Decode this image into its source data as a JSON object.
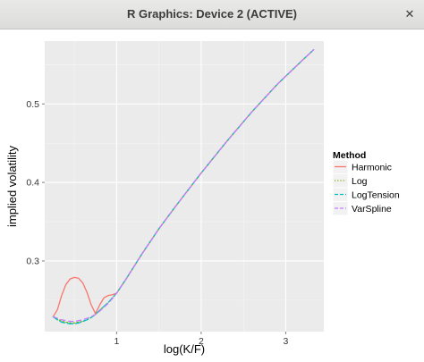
{
  "window": {
    "title": "R Graphics: Device 2 (ACTIVE)",
    "close_icon": "close-icon"
  },
  "chart_data": {
    "type": "line",
    "xlabel": "log(K/F)",
    "ylabel": "implied volatility",
    "xlim": [
      0.15,
      3.45
    ],
    "ylim": [
      0.21,
      0.58
    ],
    "xticks": [
      1,
      2,
      3
    ],
    "xtick_labels": [
      "1",
      "2",
      "3"
    ],
    "yticks": [
      0.3,
      0.4,
      0.5
    ],
    "ytick_labels": [
      "0.3",
      "0.4",
      "0.5"
    ],
    "grid": true,
    "panel_background": "#ebebeb",
    "legend": {
      "title": "Method",
      "position": "right"
    },
    "series": [
      {
        "name": "Harmonic",
        "color": "#f8766d",
        "dash": "solid",
        "x": [
          0.25,
          0.3,
          0.35,
          0.4,
          0.45,
          0.5,
          0.55,
          0.6,
          0.65,
          0.7,
          0.75,
          0.8,
          0.85,
          0.9,
          0.95,
          1.0,
          1.1,
          1.2,
          1.3,
          1.5,
          1.7,
          2.0,
          2.3,
          2.6,
          2.9,
          3.2,
          3.33
        ],
        "y": [
          0.229,
          0.238,
          0.256,
          0.27,
          0.277,
          0.279,
          0.278,
          0.272,
          0.26,
          0.244,
          0.233,
          0.244,
          0.253,
          0.256,
          0.257,
          0.259,
          0.275,
          0.292,
          0.309,
          0.341,
          0.37,
          0.412,
          0.452,
          0.49,
          0.525,
          0.556,
          0.569
        ]
      },
      {
        "name": "Log",
        "color": "#7cae00",
        "dash": "1.5,2.5",
        "x": [
          0.25,
          0.3,
          0.35,
          0.4,
          0.45,
          0.5,
          0.55,
          0.6,
          0.65,
          0.7,
          0.75,
          0.8,
          0.85,
          0.9,
          0.95,
          1.0,
          1.1,
          1.2,
          1.3,
          1.5,
          1.7,
          2.0,
          2.3,
          2.6,
          2.9,
          3.2,
          3.33
        ],
        "y": [
          0.229,
          0.226,
          0.223,
          0.222,
          0.221,
          0.221,
          0.222,
          0.223,
          0.225,
          0.228,
          0.232,
          0.237,
          0.242,
          0.247,
          0.253,
          0.259,
          0.275,
          0.292,
          0.309,
          0.341,
          0.37,
          0.412,
          0.452,
          0.49,
          0.525,
          0.556,
          0.569
        ]
      },
      {
        "name": "LogTension",
        "color": "#00bfc4",
        "dash": "6,3",
        "x": [
          0.25,
          0.3,
          0.35,
          0.4,
          0.45,
          0.5,
          0.55,
          0.6,
          0.65,
          0.7,
          0.75,
          0.8,
          0.85,
          0.9,
          0.95,
          1.0,
          1.1,
          1.2,
          1.3,
          1.5,
          1.7,
          2.0,
          2.3,
          2.6,
          2.9,
          3.2,
          3.33
        ],
        "y": [
          0.229,
          0.225,
          0.222,
          0.221,
          0.22,
          0.22,
          0.221,
          0.223,
          0.225,
          0.228,
          0.232,
          0.237,
          0.242,
          0.247,
          0.253,
          0.259,
          0.275,
          0.292,
          0.309,
          0.341,
          0.37,
          0.412,
          0.452,
          0.49,
          0.525,
          0.556,
          0.569
        ]
      },
      {
        "name": "VarSpline",
        "color": "#c77cff",
        "dash": "5,4",
        "x": [
          0.25,
          0.3,
          0.35,
          0.4,
          0.45,
          0.5,
          0.55,
          0.6,
          0.65,
          0.7,
          0.75,
          0.8,
          0.85,
          0.9,
          0.95,
          1.0,
          1.1,
          1.2,
          1.3,
          1.5,
          1.7,
          2.0,
          2.3,
          2.6,
          2.9,
          3.2,
          3.33
        ],
        "y": [
          0.229,
          0.227,
          0.225,
          0.224,
          0.223,
          0.223,
          0.224,
          0.225,
          0.227,
          0.229,
          0.232,
          0.236,
          0.241,
          0.246,
          0.252,
          0.259,
          0.275,
          0.292,
          0.309,
          0.341,
          0.37,
          0.412,
          0.452,
          0.49,
          0.525,
          0.556,
          0.569
        ]
      }
    ]
  }
}
